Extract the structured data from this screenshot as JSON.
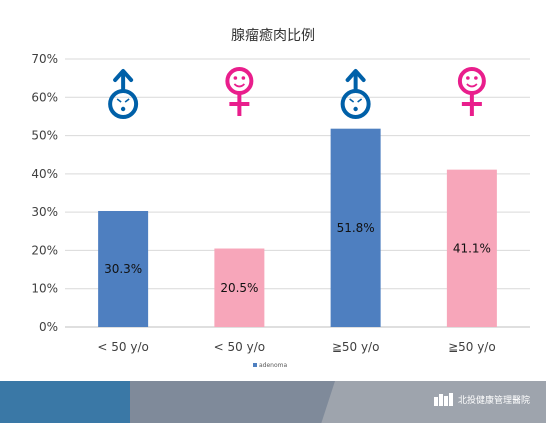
{
  "chart_data": {
    "type": "bar",
    "title": "腺瘤癒肉比例",
    "categories": [
      "< 50 y/o",
      "< 50 y/o",
      "≧50 y/o",
      "≧50 y/o"
    ],
    "series": [
      {
        "name": "adenoma",
        "values": [
          30.3,
          20.5,
          51.8,
          41.1
        ]
      }
    ],
    "value_labels": [
      "30.3%",
      "20.5%",
      "51.8%",
      "41.1%"
    ],
    "bar_colors": [
      "#4e7fc0",
      "#f7a6ba",
      "#4e7fc0",
      "#f7a6ba"
    ],
    "sex_icons": [
      "male-icon",
      "female-icon",
      "male-icon",
      "female-icon"
    ],
    "icon_colors": {
      "male": "#0060a8",
      "female": "#e91e8c"
    },
    "ylim": [
      0,
      70
    ],
    "yticks": [
      "0%",
      "10%",
      "20%",
      "30%",
      "40%",
      "50%",
      "60%",
      "70%"
    ],
    "grid": true,
    "legend_position": "bottom"
  },
  "footer": {
    "brand": "北投健康管理醫院"
  }
}
